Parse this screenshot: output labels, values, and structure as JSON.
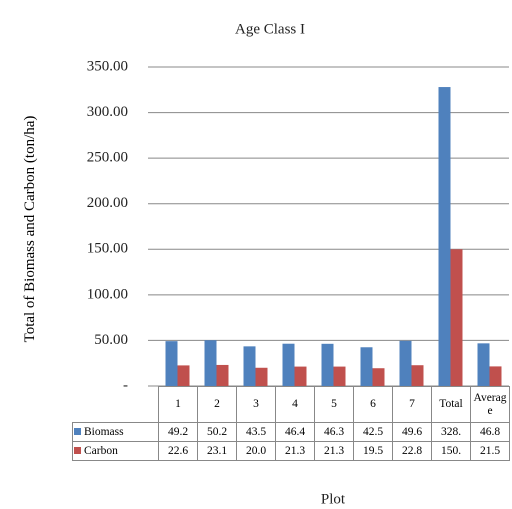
{
  "chart_data": {
    "type": "bar",
    "title": "Age Class I",
    "y_label": "Total of Biomass and Carbon (ton/ha)",
    "x_label": "Plot",
    "categories": [
      "1",
      "2",
      "3",
      "4",
      "5",
      "6",
      "7",
      "Total",
      "Average"
    ],
    "series": [
      {
        "name": "Biomass",
        "color": "#4f81bd",
        "values": [
          49.2,
          50.2,
          43.5,
          46.4,
          46.3,
          42.5,
          49.6,
          328,
          46.8
        ],
        "value_labels": [
          "49.2",
          "50.2",
          "43.5",
          "46.4",
          "46.3",
          "42.5",
          "49.6",
          "328.",
          "46.8"
        ]
      },
      {
        "name": "Carbon",
        "color": "#c0504d",
        "values": [
          22.6,
          23.1,
          20,
          21.3,
          21.3,
          19.5,
          22.8,
          150,
          21.5
        ],
        "value_labels": [
          "22.6",
          "23.1",
          "20.0",
          "21.3",
          "21.3",
          "19.5",
          "22.8",
          "150.",
          "21.5"
        ]
      }
    ],
    "ylim": [
      0,
      350
    ],
    "yticks": [
      {
        "value": 0,
        "label": "-"
      },
      {
        "value": 50,
        "label": "50.00"
      },
      {
        "value": 100,
        "label": "100.00"
      },
      {
        "value": 150,
        "label": "150.00"
      },
      {
        "value": 200,
        "label": "200.00"
      },
      {
        "value": 250,
        "label": "250.00"
      },
      {
        "value": 300,
        "label": "300.00"
      },
      {
        "value": 350,
        "label": "350.00"
      }
    ],
    "grid": true
  }
}
